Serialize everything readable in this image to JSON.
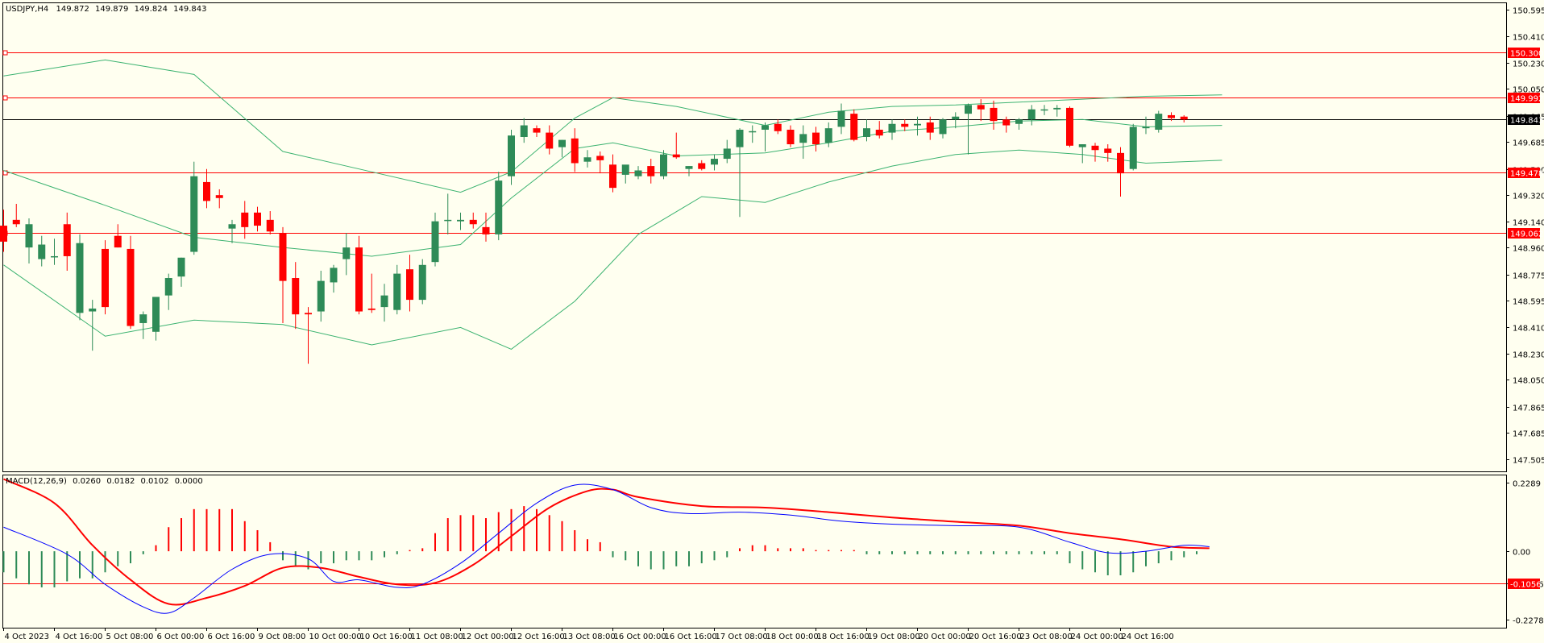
{
  "header": {
    "symbol": "USDJPY,H4",
    "open": "149.872",
    "high": "149.879",
    "low": "149.824",
    "close": "149.843"
  },
  "macd_header": {
    "name": "MACD(12,26,9)",
    "v1": "0.0260",
    "v2": "0.0182",
    "v3": "0.0102",
    "v4": "0.0000"
  },
  "colors": {
    "background": "#fffff0",
    "bull": "#2e8b57",
    "bear": "#ff0000",
    "level_line": "#ff0000",
    "bands": "#3cb371",
    "price_line": "#000000",
    "macd_line": "#0000ff",
    "signal_line": "#ff0000",
    "tag_red": "#ff0000",
    "tag_black": "#000000"
  },
  "chart_data": [
    {
      "type": "candlestick",
      "title": "USDJPY,H4",
      "ylim": [
        147.42,
        150.64
      ],
      "y_ticks": [
        "150.595",
        "150.410",
        "150.230",
        "150.050",
        "149.865",
        "149.685",
        "149.500",
        "149.320",
        "149.140",
        "148.960",
        "148.775",
        "148.595",
        "148.410",
        "148.230",
        "148.050",
        "147.865",
        "147.685",
        "147.505"
      ],
      "x_ticks": [
        "4 Oct 2023",
        "4 Oct 16:00",
        "5 Oct 08:00",
        "6 Oct 00:00",
        "6 Oct 16:00",
        "9 Oct 08:00",
        "10 Oct 00:00",
        "10 Oct 16:00",
        "11 Oct 08:00",
        "12 Oct 00:00",
        "12 Oct 16:00",
        "13 Oct 08:00",
        "16 Oct 00:00",
        "16 Oct 16:00",
        "17 Oct 08:00",
        "18 Oct 00:00",
        "18 Oct 16:00",
        "19 Oct 08:00",
        "20 Oct 00:00",
        "20 Oct 16:00",
        "23 Oct 08:00",
        "24 Oct 00:00",
        "24 Oct 16:00"
      ],
      "levels": [
        {
          "label": "150.300",
          "value": 150.3,
          "style": "red"
        },
        {
          "label": "149.992",
          "value": 149.992,
          "style": "red"
        },
        {
          "label": "149.843",
          "value": 149.843,
          "style": "black"
        },
        {
          "label": "149.478",
          "value": 149.478,
          "style": "red"
        },
        {
          "label": "149.062",
          "value": 149.062,
          "style": "red"
        }
      ],
      "candles": [
        [
          149.11,
          149.22,
          148.93,
          149.0
        ],
        [
          149.15,
          149.26,
          149.1,
          149.12
        ],
        [
          148.96,
          149.16,
          148.85,
          149.12
        ],
        [
          148.88,
          149.04,
          148.83,
          148.98
        ],
        [
          148.9,
          149.02,
          148.84,
          148.9
        ],
        [
          149.12,
          149.2,
          148.8,
          148.9
        ],
        [
          148.51,
          149.05,
          148.46,
          148.99
        ],
        [
          148.52,
          148.6,
          148.25,
          148.54
        ],
        [
          148.95,
          149.01,
          148.5,
          148.55
        ],
        [
          149.04,
          149.12,
          148.96,
          148.96
        ],
        [
          148.95,
          149.04,
          148.4,
          148.42
        ],
        [
          148.44,
          148.52,
          148.33,
          148.5
        ],
        [
          148.38,
          148.62,
          148.32,
          148.62
        ],
        [
          148.63,
          148.78,
          148.53,
          148.75
        ],
        [
          148.76,
          148.89,
          148.69,
          148.89
        ],
        [
          148.93,
          149.55,
          148.91,
          149.45
        ],
        [
          149.41,
          149.5,
          149.23,
          149.28
        ],
        [
          149.32,
          149.36,
          149.23,
          149.3
        ],
        [
          149.09,
          149.15,
          148.99,
          149.12
        ],
        [
          149.2,
          149.28,
          149.02,
          149.1
        ],
        [
          149.2,
          149.24,
          149.07,
          149.11
        ],
        [
          149.15,
          149.21,
          149.05,
          149.07
        ],
        [
          149.06,
          149.1,
          148.44,
          148.73
        ],
        [
          148.75,
          148.86,
          148.4,
          148.5
        ],
        [
          148.51,
          148.55,
          148.16,
          148.5
        ],
        [
          148.52,
          148.8,
          148.45,
          148.73
        ],
        [
          148.72,
          148.84,
          148.65,
          148.82
        ],
        [
          148.88,
          149.06,
          148.77,
          148.96
        ],
        [
          148.96,
          149.04,
          148.5,
          148.52
        ],
        [
          148.54,
          148.78,
          148.51,
          148.53
        ],
        [
          148.55,
          148.71,
          148.45,
          148.63
        ],
        [
          148.53,
          148.84,
          148.5,
          148.78
        ],
        [
          148.81,
          148.91,
          148.52,
          148.6
        ],
        [
          148.6,
          148.88,
          148.57,
          148.84
        ],
        [
          148.86,
          149.2,
          148.83,
          149.14
        ],
        [
          149.15,
          149.33,
          149.05,
          149.15
        ],
        [
          149.14,
          149.2,
          149.08,
          149.15
        ],
        [
          149.15,
          149.2,
          149.09,
          149.12
        ],
        [
          149.1,
          149.2,
          149.0,
          149.05
        ],
        [
          149.05,
          149.48,
          149.01,
          149.42
        ],
        [
          149.45,
          149.77,
          149.39,
          149.73
        ],
        [
          149.72,
          149.85,
          149.68,
          149.8
        ],
        [
          149.78,
          149.8,
          149.72,
          149.75
        ],
        [
          149.75,
          149.8,
          149.6,
          149.64
        ],
        [
          149.65,
          149.7,
          149.58,
          149.7
        ],
        [
          149.71,
          149.78,
          149.48,
          149.54
        ],
        [
          149.55,
          149.63,
          149.51,
          149.58
        ],
        [
          149.59,
          149.62,
          149.47,
          149.56
        ],
        [
          149.53,
          149.6,
          149.34,
          149.37
        ],
        [
          149.46,
          149.52,
          149.4,
          149.53
        ],
        [
          149.45,
          149.52,
          149.43,
          149.49
        ],
        [
          149.52,
          149.57,
          149.4,
          149.45
        ],
        [
          149.45,
          149.63,
          149.43,
          149.6
        ],
        [
          149.6,
          149.75,
          149.57,
          149.58
        ],
        [
          149.5,
          149.52,
          149.45,
          149.52
        ],
        [
          149.54,
          149.56,
          149.49,
          149.5
        ],
        [
          149.53,
          149.6,
          149.49,
          149.57
        ],
        [
          149.57,
          149.7,
          149.54,
          149.64
        ],
        [
          149.65,
          149.78,
          149.17,
          149.77
        ],
        [
          149.76,
          149.8,
          149.68,
          149.76
        ],
        [
          149.77,
          149.82,
          149.62,
          149.8
        ],
        [
          149.81,
          149.84,
          149.74,
          149.76
        ],
        [
          149.77,
          149.8,
          149.65,
          149.67
        ],
        [
          149.68,
          149.8,
          149.57,
          149.74
        ],
        [
          149.75,
          149.79,
          149.62,
          149.67
        ],
        [
          149.68,
          149.82,
          149.65,
          149.78
        ],
        [
          149.79,
          149.95,
          149.74,
          149.9
        ],
        [
          149.88,
          149.91,
          149.69,
          149.7
        ],
        [
          149.72,
          149.84,
          149.69,
          149.78
        ],
        [
          149.77,
          149.83,
          149.71,
          149.73
        ],
        [
          149.75,
          149.84,
          149.7,
          149.81
        ],
        [
          149.81,
          149.84,
          149.76,
          149.79
        ],
        [
          149.8,
          149.86,
          149.73,
          149.81
        ],
        [
          149.82,
          149.86,
          149.7,
          149.75
        ],
        [
          149.74,
          149.85,
          149.71,
          149.84
        ],
        [
          149.84,
          149.89,
          149.78,
          149.86
        ],
        [
          149.88,
          149.95,
          149.6,
          149.94
        ],
        [
          149.94,
          149.98,
          149.83,
          149.91
        ],
        [
          149.92,
          149.97,
          149.77,
          149.83
        ],
        [
          149.84,
          149.86,
          149.75,
          149.8
        ],
        [
          149.81,
          149.85,
          149.77,
          149.84
        ],
        [
          149.84,
          149.94,
          149.8,
          149.91
        ],
        [
          149.91,
          149.94,
          149.87,
          149.91
        ],
        [
          149.91,
          149.94,
          149.86,
          149.92
        ],
        [
          149.92,
          149.93,
          149.65,
          149.66
        ],
        [
          149.65,
          149.67,
          149.54,
          149.67
        ],
        [
          149.66,
          149.68,
          149.55,
          149.63
        ],
        [
          149.64,
          149.67,
          149.55,
          149.61
        ],
        [
          149.61,
          149.65,
          149.31,
          149.47
        ],
        [
          149.5,
          149.81,
          149.49,
          149.79
        ],
        [
          149.78,
          149.86,
          149.74,
          149.79
        ],
        [
          149.77,
          149.9,
          149.75,
          149.88
        ],
        [
          149.87,
          149.89,
          149.83,
          149.85
        ],
        [
          149.86,
          149.87,
          149.82,
          149.84
        ]
      ],
      "bollinger": {
        "upper": [
          [
            0,
            150.14
          ],
          [
            8,
            150.25
          ],
          [
            15,
            150.15
          ],
          [
            22,
            149.62
          ],
          [
            29,
            149.48
          ],
          [
            36,
            149.34
          ],
          [
            40,
            149.48
          ],
          [
            45,
            149.85
          ],
          [
            48,
            149.99
          ],
          [
            53,
            149.93
          ],
          [
            60,
            149.8
          ],
          [
            65,
            149.89
          ],
          [
            70,
            149.93
          ],
          [
            75,
            149.94
          ],
          [
            80,
            149.96
          ],
          [
            85,
            149.98
          ],
          [
            90,
            150.0
          ],
          [
            96,
            150.01
          ]
        ],
        "middle": [
          [
            0,
            149.49
          ],
          [
            8,
            149.25
          ],
          [
            15,
            149.03
          ],
          [
            22,
            148.96
          ],
          [
            29,
            148.9
          ],
          [
            36,
            148.98
          ],
          [
            40,
            149.3
          ],
          [
            45,
            149.64
          ],
          [
            48,
            149.68
          ],
          [
            53,
            149.59
          ],
          [
            60,
            149.61
          ],
          [
            65,
            149.68
          ],
          [
            70,
            149.76
          ],
          [
            75,
            149.79
          ],
          [
            80,
            149.83
          ],
          [
            85,
            149.84
          ],
          [
            90,
            149.79
          ],
          [
            96,
            149.8
          ]
        ],
        "lower": [
          [
            0,
            148.84
          ],
          [
            8,
            148.35
          ],
          [
            15,
            148.46
          ],
          [
            22,
            148.43
          ],
          [
            29,
            148.29
          ],
          [
            36,
            148.41
          ],
          [
            40,
            148.26
          ],
          [
            45,
            148.59
          ],
          [
            50,
            149.05
          ],
          [
            55,
            149.31
          ],
          [
            60,
            149.27
          ],
          [
            65,
            149.41
          ],
          [
            70,
            149.52
          ],
          [
            75,
            149.6
          ],
          [
            80,
            149.63
          ],
          [
            85,
            149.6
          ],
          [
            90,
            149.54
          ],
          [
            96,
            149.56
          ]
        ]
      }
    },
    {
      "type": "macd",
      "title": "MACD(12,26,9)",
      "ylim": [
        -0.254,
        0.252
      ],
      "y_ticks": [
        "0.2289",
        "0.00",
        "-0.1056",
        "-0.2278"
      ],
      "level": {
        "label": "-0.1056",
        "value": -0.1056
      },
      "histogram": [
        -0.07,
        -0.09,
        -0.11,
        -0.12,
        -0.12,
        -0.1,
        -0.09,
        -0.09,
        -0.07,
        -0.05,
        -0.04,
        -0.01,
        0.02,
        0.08,
        0.11,
        0.14,
        0.14,
        0.14,
        0.14,
        0.1,
        0.07,
        0.03,
        -0.03,
        -0.05,
        -0.06,
        -0.04,
        -0.04,
        -0.03,
        -0.03,
        -0.03,
        -0.02,
        -0.01,
        0.0,
        0.01,
        0.06,
        0.11,
        0.12,
        0.12,
        0.11,
        0.13,
        0.14,
        0.15,
        0.14,
        0.12,
        0.1,
        0.07,
        0.04,
        0.03,
        -0.02,
        -0.03,
        -0.05,
        -0.06,
        -0.06,
        -0.05,
        -0.05,
        -0.04,
        -0.03,
        -0.02,
        0.01,
        0.02,
        0.02,
        0.01,
        0.01,
        0.01,
        0.0,
        0.0,
        0.0,
        0.0,
        -0.01,
        -0.01,
        -0.01,
        -0.01,
        -0.01,
        -0.01,
        -0.01,
        -0.01,
        -0.01,
        -0.01,
        -0.01,
        -0.01,
        -0.01,
        -0.01,
        -0.01,
        -0.01,
        -0.04,
        -0.06,
        -0.07,
        -0.08,
        -0.08,
        -0.07,
        -0.05,
        -0.04,
        -0.03,
        -0.02,
        -0.01
      ],
      "macd": [
        [
          0,
          0.08
        ],
        [
          5,
          -0.01
        ],
        [
          8,
          -0.11
        ],
        [
          11,
          -0.185
        ],
        [
          13,
          -0.205
        ],
        [
          15,
          -0.155
        ],
        [
          18,
          -0.06
        ],
        [
          21,
          -0.01
        ],
        [
          24,
          -0.025
        ],
        [
          26,
          -0.1
        ],
        [
          28,
          -0.095
        ],
        [
          31,
          -0.12
        ],
        [
          33,
          -0.11
        ],
        [
          36,
          -0.04
        ],
        [
          39,
          0.06
        ],
        [
          42,
          0.16
        ],
        [
          45,
          0.22
        ],
        [
          48,
          0.205
        ],
        [
          51,
          0.145
        ],
        [
          54,
          0.125
        ],
        [
          58,
          0.13
        ],
        [
          62,
          0.12
        ],
        [
          66,
          0.1
        ],
        [
          70,
          0.09
        ],
        [
          75,
          0.085
        ],
        [
          80,
          0.08
        ],
        [
          84,
          0.03
        ],
        [
          87,
          -0.005
        ],
        [
          90,
          0.0
        ],
        [
          93,
          0.02
        ],
        [
          95,
          0.015
        ]
      ],
      "signal": [
        [
          0,
          0.24
        ],
        [
          4,
          0.16
        ],
        [
          7,
          0.02
        ],
        [
          10,
          -0.095
        ],
        [
          13,
          -0.175
        ],
        [
          16,
          -0.155
        ],
        [
          19,
          -0.115
        ],
        [
          22,
          -0.055
        ],
        [
          25,
          -0.055
        ],
        [
          28,
          -0.085
        ],
        [
          31,
          -0.11
        ],
        [
          34,
          -0.105
        ],
        [
          37,
          -0.045
        ],
        [
          40,
          0.05
        ],
        [
          43,
          0.145
        ],
        [
          46,
          0.2
        ],
        [
          48,
          0.205
        ],
        [
          50,
          0.18
        ],
        [
          55,
          0.15
        ],
        [
          60,
          0.145
        ],
        [
          65,
          0.13
        ],
        [
          70,
          0.112
        ],
        [
          75,
          0.098
        ],
        [
          80,
          0.085
        ],
        [
          84,
          0.06
        ],
        [
          88,
          0.04
        ],
        [
          92,
          0.015
        ],
        [
          95,
          0.01
        ]
      ]
    }
  ]
}
